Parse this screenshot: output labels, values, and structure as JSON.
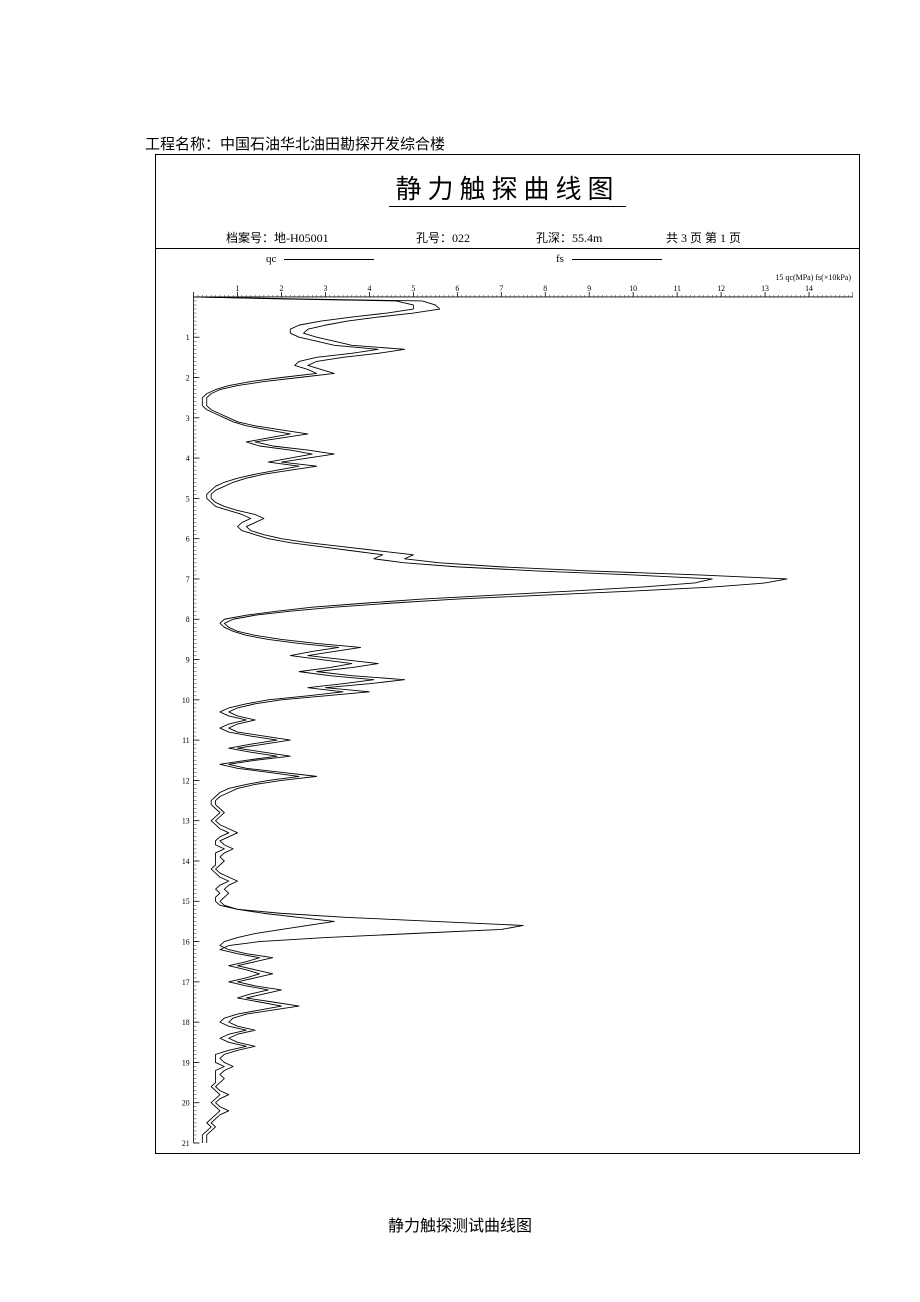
{
  "project_label": "工程名称：中国石油华北油田勘探开发综合楼",
  "chart_title": "静力触探曲线图",
  "meta": {
    "archive_label": "档案号：",
    "archive_value": "地-H05001",
    "hole_label": "孔号：",
    "hole_value": "022",
    "depth_label": "孔深：",
    "depth_value": "55.4m",
    "page_label": "共 3 页 第 1 页"
  },
  "legend": {
    "qc": "qc",
    "fs": "fs"
  },
  "axis_unit_label": "15 qc(MPa) fs(×10kPa)",
  "caption": "静力触探测试曲线图",
  "chart": {
    "type": "line",
    "x_axis": {
      "min": 0,
      "max": 15,
      "tick_step": 1,
      "label_fontsize": 8
    },
    "y_axis": {
      "min": 0,
      "max": 21,
      "tick_step": 1,
      "label_fontsize": 8,
      "minor_ticks": 10
    },
    "background_color": "#ffffff",
    "line_color": "#000000",
    "line_width": 0.9,
    "series_qc": [
      [
        0,
        0.0
      ],
      [
        2.4,
        0.05
      ],
      [
        5.2,
        0.1
      ],
      [
        5.5,
        0.2
      ],
      [
        5.6,
        0.3
      ],
      [
        5.0,
        0.4
      ],
      [
        4.2,
        0.5
      ],
      [
        3.5,
        0.6
      ],
      [
        3.0,
        0.7
      ],
      [
        2.6,
        0.8
      ],
      [
        2.5,
        0.9
      ],
      [
        2.8,
        1.0
      ],
      [
        3.2,
        1.1
      ],
      [
        3.6,
        1.2
      ],
      [
        4.8,
        1.3
      ],
      [
        4.2,
        1.4
      ],
      [
        3.4,
        1.5
      ],
      [
        2.8,
        1.6
      ],
      [
        2.6,
        1.7
      ],
      [
        2.9,
        1.8
      ],
      [
        3.2,
        1.9
      ],
      [
        2.4,
        2.0
      ],
      [
        1.6,
        2.1
      ],
      [
        1.0,
        2.2
      ],
      [
        0.6,
        2.3
      ],
      [
        0.4,
        2.4
      ],
      [
        0.3,
        2.5
      ],
      [
        0.3,
        2.6
      ],
      [
        0.3,
        2.7
      ],
      [
        0.4,
        2.8
      ],
      [
        0.6,
        2.9
      ],
      [
        0.8,
        3.0
      ],
      [
        1.0,
        3.1
      ],
      [
        1.4,
        3.2
      ],
      [
        2.0,
        3.3
      ],
      [
        2.6,
        3.4
      ],
      [
        2.0,
        3.5
      ],
      [
        1.4,
        3.6
      ],
      [
        1.8,
        3.7
      ],
      [
        2.6,
        3.8
      ],
      [
        3.2,
        3.9
      ],
      [
        2.6,
        4.0
      ],
      [
        2.0,
        4.1
      ],
      [
        2.8,
        4.2
      ],
      [
        2.2,
        4.3
      ],
      [
        1.6,
        4.4
      ],
      [
        1.2,
        4.5
      ],
      [
        0.9,
        4.6
      ],
      [
        0.7,
        4.7
      ],
      [
        0.5,
        4.8
      ],
      [
        0.4,
        4.9
      ],
      [
        0.4,
        5.0
      ],
      [
        0.5,
        5.1
      ],
      [
        0.7,
        5.2
      ],
      [
        1.0,
        5.3
      ],
      [
        1.4,
        5.4
      ],
      [
        1.6,
        5.5
      ],
      [
        1.4,
        5.6
      ],
      [
        1.2,
        5.7
      ],
      [
        1.3,
        5.8
      ],
      [
        1.6,
        5.9
      ],
      [
        2.0,
        6.0
      ],
      [
        2.6,
        6.1
      ],
      [
        3.4,
        6.2
      ],
      [
        4.2,
        6.3
      ],
      [
        5.0,
        6.4
      ],
      [
        4.8,
        6.5
      ],
      [
        5.6,
        6.6
      ],
      [
        7.0,
        6.7
      ],
      [
        9.0,
        6.8
      ],
      [
        11.5,
        6.9
      ],
      [
        13.5,
        7.0
      ],
      [
        13.0,
        7.1
      ],
      [
        11.8,
        7.2
      ],
      [
        10.0,
        7.3
      ],
      [
        8.0,
        7.4
      ],
      [
        6.0,
        7.5
      ],
      [
        4.5,
        7.6
      ],
      [
        3.2,
        7.7
      ],
      [
        2.2,
        7.8
      ],
      [
        1.4,
        7.9
      ],
      [
        0.9,
        8.0
      ],
      [
        0.7,
        8.1
      ],
      [
        0.8,
        8.2
      ],
      [
        1.0,
        8.3
      ],
      [
        1.4,
        8.4
      ],
      [
        2.0,
        8.5
      ],
      [
        2.8,
        8.6
      ],
      [
        3.8,
        8.7
      ],
      [
        3.2,
        8.8
      ],
      [
        2.6,
        8.9
      ],
      [
        3.4,
        9.0
      ],
      [
        4.2,
        9.1
      ],
      [
        3.6,
        9.2
      ],
      [
        2.8,
        9.3
      ],
      [
        3.6,
        9.4
      ],
      [
        4.8,
        9.5
      ],
      [
        4.0,
        9.6
      ],
      [
        3.0,
        9.7
      ],
      [
        4.0,
        9.8
      ],
      [
        3.0,
        9.9
      ],
      [
        2.0,
        10.0
      ],
      [
        1.4,
        10.1
      ],
      [
        1.0,
        10.2
      ],
      [
        0.8,
        10.3
      ],
      [
        1.0,
        10.4
      ],
      [
        1.4,
        10.5
      ],
      [
        1.0,
        10.6
      ],
      [
        0.8,
        10.7
      ],
      [
        1.0,
        10.8
      ],
      [
        1.6,
        10.9
      ],
      [
        2.2,
        11.0
      ],
      [
        1.6,
        11.1
      ],
      [
        1.0,
        11.2
      ],
      [
        1.6,
        11.3
      ],
      [
        2.2,
        11.4
      ],
      [
        1.4,
        11.5
      ],
      [
        0.8,
        11.6
      ],
      [
        1.2,
        11.7
      ],
      [
        2.0,
        11.8
      ],
      [
        2.8,
        11.9
      ],
      [
        2.0,
        12.0
      ],
      [
        1.4,
        12.1
      ],
      [
        1.0,
        12.2
      ],
      [
        0.8,
        12.3
      ],
      [
        0.6,
        12.4
      ],
      [
        0.5,
        12.5
      ],
      [
        0.5,
        12.6
      ],
      [
        0.6,
        12.7
      ],
      [
        0.7,
        12.8
      ],
      [
        0.6,
        12.9
      ],
      [
        0.5,
        13.0
      ],
      [
        0.6,
        13.1
      ],
      [
        0.8,
        13.2
      ],
      [
        1.0,
        13.3
      ],
      [
        0.8,
        13.4
      ],
      [
        0.6,
        13.5
      ],
      [
        0.7,
        13.6
      ],
      [
        0.9,
        13.7
      ],
      [
        0.7,
        13.8
      ],
      [
        0.6,
        13.9
      ],
      [
        0.7,
        14.0
      ],
      [
        0.6,
        14.1
      ],
      [
        0.5,
        14.2
      ],
      [
        0.6,
        14.3
      ],
      [
        0.8,
        14.4
      ],
      [
        1.0,
        14.5
      ],
      [
        0.8,
        14.6
      ],
      [
        0.7,
        14.7
      ],
      [
        0.8,
        14.8
      ],
      [
        0.7,
        14.9
      ],
      [
        0.6,
        15.0
      ],
      [
        0.7,
        15.1
      ],
      [
        1.0,
        15.2
      ],
      [
        1.6,
        15.3
      ],
      [
        2.4,
        15.4
      ],
      [
        3.2,
        15.5
      ],
      [
        2.6,
        15.6
      ],
      [
        2.0,
        15.7
      ],
      [
        1.4,
        15.8
      ],
      [
        1.0,
        15.9
      ],
      [
        0.7,
        16.0
      ],
      [
        0.6,
        16.1
      ],
      [
        0.8,
        16.2
      ],
      [
        1.2,
        16.3
      ],
      [
        1.8,
        16.4
      ],
      [
        1.4,
        16.5
      ],
      [
        1.0,
        16.6
      ],
      [
        1.4,
        16.7
      ],
      [
        1.8,
        16.8
      ],
      [
        1.4,
        16.9
      ],
      [
        1.0,
        17.0
      ],
      [
        1.4,
        17.1
      ],
      [
        2.0,
        17.2
      ],
      [
        1.6,
        17.3
      ],
      [
        1.2,
        17.4
      ],
      [
        1.8,
        17.5
      ],
      [
        2.4,
        17.6
      ],
      [
        1.8,
        17.7
      ],
      [
        1.2,
        17.8
      ],
      [
        0.9,
        17.9
      ],
      [
        0.8,
        18.0
      ],
      [
        1.0,
        18.1
      ],
      [
        1.4,
        18.2
      ],
      [
        1.0,
        18.3
      ],
      [
        0.8,
        18.4
      ],
      [
        1.0,
        18.5
      ],
      [
        1.4,
        18.6
      ],
      [
        1.0,
        18.7
      ],
      [
        0.7,
        18.8
      ],
      [
        0.6,
        18.9
      ],
      [
        0.7,
        19.0
      ],
      [
        0.9,
        19.1
      ],
      [
        0.7,
        19.2
      ],
      [
        0.6,
        19.3
      ],
      [
        0.7,
        19.4
      ],
      [
        0.6,
        19.5
      ],
      [
        0.5,
        19.6
      ],
      [
        0.6,
        19.7
      ],
      [
        0.8,
        19.8
      ],
      [
        0.6,
        19.9
      ],
      [
        0.5,
        20.0
      ],
      [
        0.6,
        20.1
      ],
      [
        0.8,
        20.2
      ],
      [
        0.6,
        20.3
      ],
      [
        0.5,
        20.4
      ],
      [
        0.4,
        20.5
      ],
      [
        0.5,
        20.6
      ],
      [
        0.4,
        20.7
      ],
      [
        0.3,
        20.8
      ],
      [
        0.3,
        20.9
      ],
      [
        0.3,
        21.0
      ]
    ],
    "series_fs": [
      [
        0,
        0.0
      ],
      [
        2.0,
        0.05
      ],
      [
        4.6,
        0.1
      ],
      [
        5.0,
        0.2
      ],
      [
        5.0,
        0.3
      ],
      [
        4.4,
        0.4
      ],
      [
        3.6,
        0.5
      ],
      [
        2.9,
        0.6
      ],
      [
        2.4,
        0.7
      ],
      [
        2.2,
        0.8
      ],
      [
        2.2,
        0.9
      ],
      [
        2.4,
        1.0
      ],
      [
        2.8,
        1.1
      ],
      [
        3.2,
        1.2
      ],
      [
        4.2,
        1.3
      ],
      [
        3.6,
        1.4
      ],
      [
        2.8,
        1.5
      ],
      [
        2.4,
        1.6
      ],
      [
        2.3,
        1.7
      ],
      [
        2.6,
        1.8
      ],
      [
        2.8,
        1.9
      ],
      [
        2.0,
        2.0
      ],
      [
        1.3,
        2.1
      ],
      [
        0.8,
        2.2
      ],
      [
        0.5,
        2.3
      ],
      [
        0.3,
        2.4
      ],
      [
        0.2,
        2.5
      ],
      [
        0.2,
        2.6
      ],
      [
        0.2,
        2.7
      ],
      [
        0.3,
        2.8
      ],
      [
        0.5,
        2.9
      ],
      [
        0.7,
        3.0
      ],
      [
        0.9,
        3.1
      ],
      [
        1.2,
        3.2
      ],
      [
        1.7,
        3.3
      ],
      [
        2.2,
        3.4
      ],
      [
        1.7,
        3.5
      ],
      [
        1.2,
        3.6
      ],
      [
        1.5,
        3.7
      ],
      [
        2.2,
        3.8
      ],
      [
        2.7,
        3.9
      ],
      [
        2.2,
        4.0
      ],
      [
        1.7,
        4.1
      ],
      [
        2.4,
        4.2
      ],
      [
        1.9,
        4.3
      ],
      [
        1.4,
        4.4
      ],
      [
        1.0,
        4.5
      ],
      [
        0.7,
        4.6
      ],
      [
        0.5,
        4.7
      ],
      [
        0.4,
        4.8
      ],
      [
        0.3,
        4.9
      ],
      [
        0.3,
        5.0
      ],
      [
        0.4,
        5.1
      ],
      [
        0.5,
        5.2
      ],
      [
        0.8,
        5.3
      ],
      [
        1.1,
        5.4
      ],
      [
        1.3,
        5.5
      ],
      [
        1.1,
        5.6
      ],
      [
        1.0,
        5.7
      ],
      [
        1.1,
        5.8
      ],
      [
        1.4,
        5.9
      ],
      [
        1.7,
        6.0
      ],
      [
        2.2,
        6.1
      ],
      [
        2.9,
        6.2
      ],
      [
        3.6,
        6.3
      ],
      [
        4.3,
        6.4
      ],
      [
        4.1,
        6.5
      ],
      [
        4.8,
        6.6
      ],
      [
        6.0,
        6.7
      ],
      [
        7.8,
        6.8
      ],
      [
        10.0,
        6.9
      ],
      [
        11.8,
        7.0
      ],
      [
        11.4,
        7.1
      ],
      [
        10.2,
        7.2
      ],
      [
        8.6,
        7.3
      ],
      [
        6.9,
        7.4
      ],
      [
        5.2,
        7.5
      ],
      [
        3.9,
        7.6
      ],
      [
        2.7,
        7.7
      ],
      [
        1.9,
        7.8
      ],
      [
        1.2,
        7.9
      ],
      [
        0.7,
        8.0
      ],
      [
        0.6,
        8.1
      ],
      [
        0.7,
        8.2
      ],
      [
        0.9,
        8.3
      ],
      [
        1.2,
        8.4
      ],
      [
        1.7,
        8.5
      ],
      [
        2.4,
        8.6
      ],
      [
        3.3,
        8.7
      ],
      [
        2.7,
        8.8
      ],
      [
        2.2,
        8.9
      ],
      [
        2.9,
        9.0
      ],
      [
        3.6,
        9.1
      ],
      [
        3.1,
        9.2
      ],
      [
        2.4,
        9.3
      ],
      [
        3.1,
        9.4
      ],
      [
        4.1,
        9.5
      ],
      [
        3.4,
        9.6
      ],
      [
        2.6,
        9.7
      ],
      [
        3.4,
        9.8
      ],
      [
        2.6,
        9.9
      ],
      [
        1.7,
        10.0
      ],
      [
        1.2,
        10.1
      ],
      [
        0.8,
        10.2
      ],
      [
        0.6,
        10.3
      ],
      [
        0.8,
        10.4
      ],
      [
        1.2,
        10.5
      ],
      [
        0.8,
        10.6
      ],
      [
        0.6,
        10.7
      ],
      [
        0.8,
        10.8
      ],
      [
        1.3,
        10.9
      ],
      [
        1.9,
        11.0
      ],
      [
        1.3,
        11.1
      ],
      [
        0.8,
        11.2
      ],
      [
        1.3,
        11.3
      ],
      [
        1.9,
        11.4
      ],
      [
        1.2,
        11.5
      ],
      [
        0.6,
        11.6
      ],
      [
        1.0,
        11.7
      ],
      [
        1.7,
        11.8
      ],
      [
        2.4,
        11.9
      ],
      [
        1.7,
        12.0
      ],
      [
        1.2,
        12.1
      ],
      [
        0.8,
        12.2
      ],
      [
        0.6,
        12.3
      ],
      [
        0.5,
        12.4
      ],
      [
        0.4,
        12.5
      ],
      [
        0.4,
        12.6
      ],
      [
        0.5,
        12.7
      ],
      [
        0.6,
        12.8
      ],
      [
        0.5,
        12.9
      ],
      [
        0.4,
        13.0
      ],
      [
        0.5,
        13.1
      ],
      [
        0.6,
        13.2
      ],
      [
        0.8,
        13.3
      ],
      [
        0.6,
        13.4
      ],
      [
        0.5,
        13.5
      ],
      [
        0.5,
        13.6
      ],
      [
        0.7,
        13.7
      ],
      [
        0.5,
        13.8
      ],
      [
        0.5,
        13.9
      ],
      [
        0.5,
        14.0
      ],
      [
        0.5,
        14.1
      ],
      [
        0.4,
        14.2
      ],
      [
        0.5,
        14.3
      ],
      [
        0.6,
        14.4
      ],
      [
        0.8,
        14.5
      ],
      [
        0.6,
        14.6
      ],
      [
        0.5,
        14.7
      ],
      [
        0.6,
        14.8
      ],
      [
        0.5,
        14.9
      ],
      [
        0.5,
        15.0
      ],
      [
        0.6,
        15.1
      ],
      [
        1.0,
        15.2
      ],
      [
        2.0,
        15.3
      ],
      [
        3.5,
        15.4
      ],
      [
        5.5,
        15.5
      ],
      [
        7.5,
        15.6
      ],
      [
        7.0,
        15.7
      ],
      [
        5.0,
        15.8
      ],
      [
        3.0,
        15.9
      ],
      [
        1.5,
        16.0
      ],
      [
        0.8,
        16.1
      ],
      [
        0.6,
        16.2
      ],
      [
        1.0,
        16.3
      ],
      [
        1.5,
        16.4
      ],
      [
        1.2,
        16.5
      ],
      [
        0.8,
        16.6
      ],
      [
        1.2,
        16.7
      ],
      [
        1.5,
        16.8
      ],
      [
        1.2,
        16.9
      ],
      [
        0.8,
        17.0
      ],
      [
        1.2,
        17.1
      ],
      [
        1.7,
        17.2
      ],
      [
        1.3,
        17.3
      ],
      [
        1.0,
        17.4
      ],
      [
        1.5,
        17.5
      ],
      [
        2.0,
        17.6
      ],
      [
        1.5,
        17.7
      ],
      [
        1.0,
        17.8
      ],
      [
        0.7,
        17.9
      ],
      [
        0.6,
        18.0
      ],
      [
        0.8,
        18.1
      ],
      [
        1.2,
        18.2
      ],
      [
        0.8,
        18.3
      ],
      [
        0.6,
        18.4
      ],
      [
        0.8,
        18.5
      ],
      [
        1.2,
        18.6
      ],
      [
        0.8,
        18.7
      ],
      [
        0.5,
        18.8
      ],
      [
        0.5,
        18.9
      ],
      [
        0.5,
        19.0
      ],
      [
        0.7,
        19.1
      ],
      [
        0.5,
        19.2
      ],
      [
        0.5,
        19.3
      ],
      [
        0.5,
        19.4
      ],
      [
        0.5,
        19.5
      ],
      [
        0.4,
        19.6
      ],
      [
        0.5,
        19.7
      ],
      [
        0.6,
        19.8
      ],
      [
        0.5,
        19.9
      ],
      [
        0.4,
        20.0
      ],
      [
        0.5,
        20.1
      ],
      [
        0.6,
        20.2
      ],
      [
        0.5,
        20.3
      ],
      [
        0.4,
        20.4
      ],
      [
        0.3,
        20.5
      ],
      [
        0.4,
        20.6
      ],
      [
        0.3,
        20.7
      ],
      [
        0.2,
        20.8
      ],
      [
        0.2,
        20.9
      ],
      [
        0.2,
        21.0
      ]
    ]
  }
}
